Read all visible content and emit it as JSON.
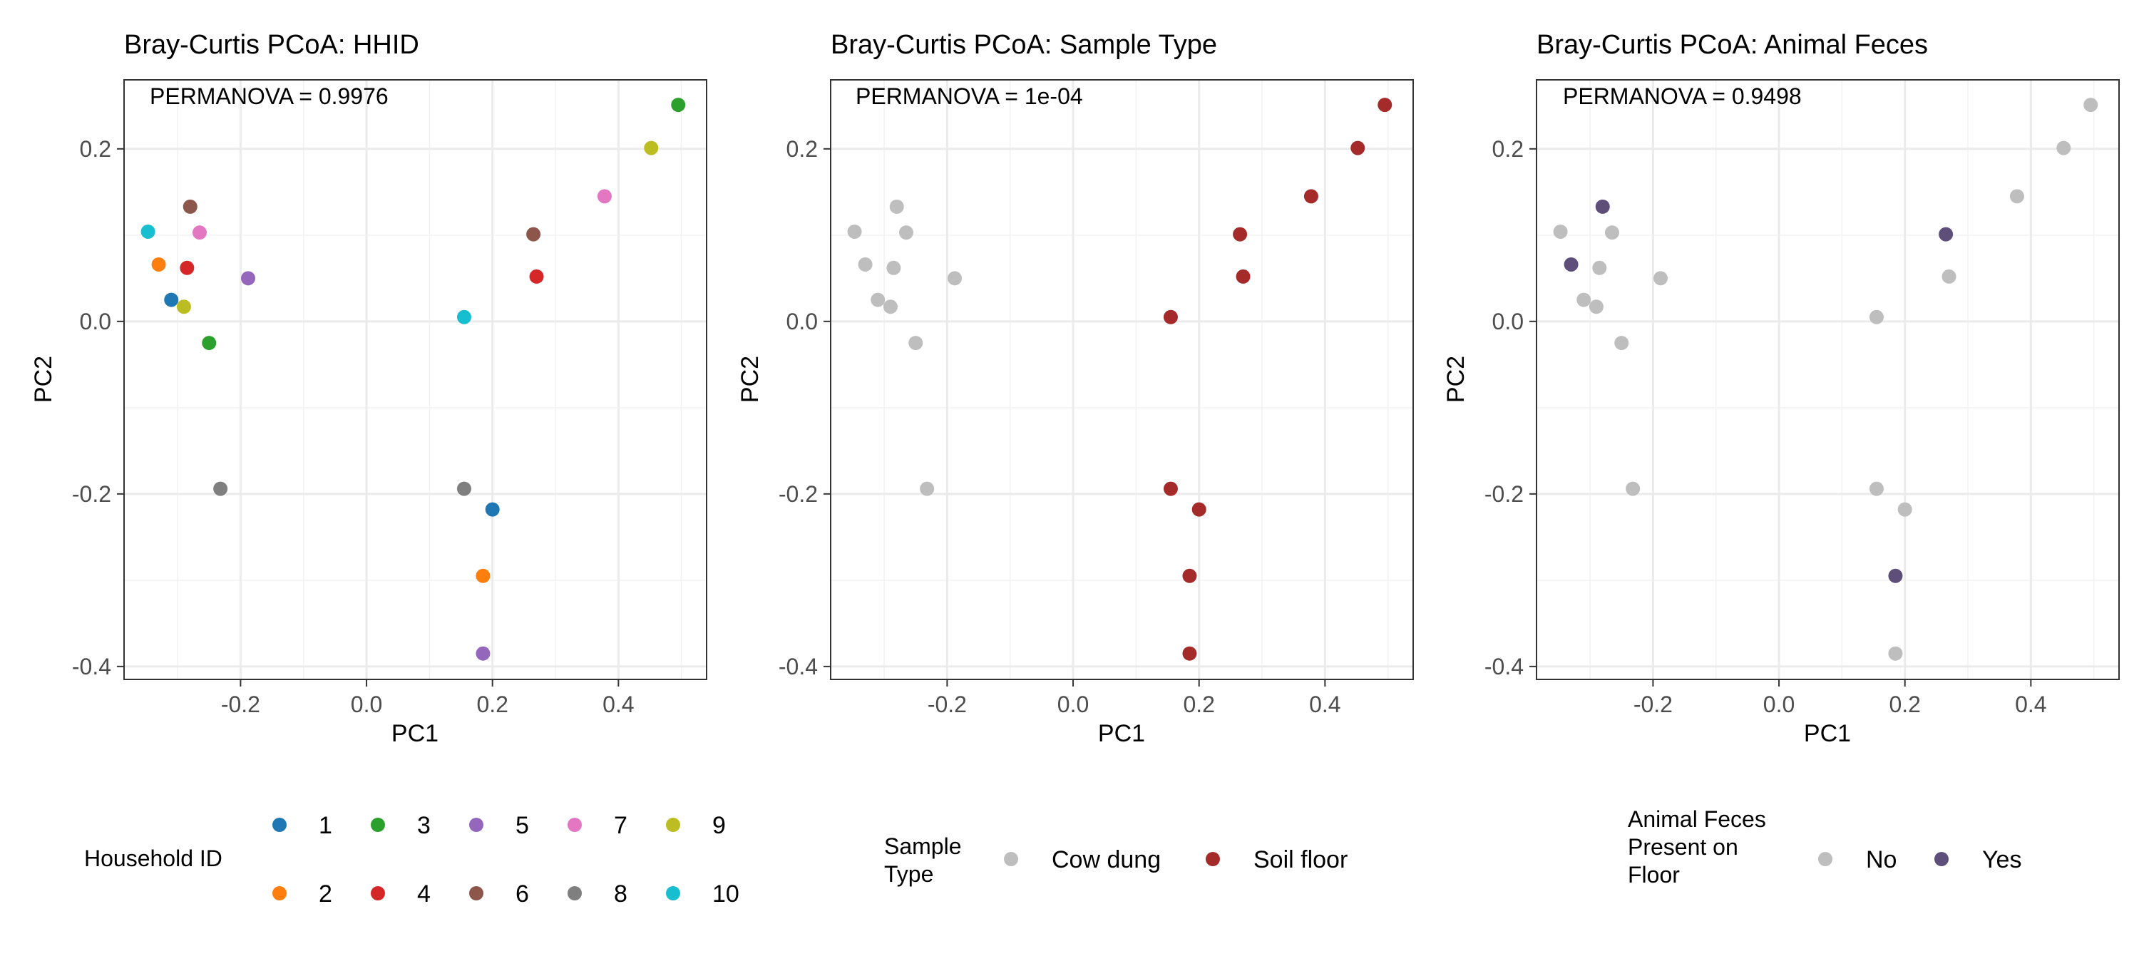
{
  "panels": [
    {
      "id": "hhid",
      "chart_data": {
        "type": "scatter",
        "title": "Bray-Curtis PCoA: HHID",
        "annotation": "PERMANOVA = 0.9976",
        "xlabel": "PC1",
        "ylabel": "PC2",
        "xlim": [
          -0.385,
          0.54
        ],
        "ylim": [
          -0.415,
          0.28
        ],
        "xticks": [
          -0.2,
          0.0,
          0.2,
          0.4
        ],
        "xtick_labels": [
          "-0.2",
          "0.0",
          "0.2",
          "0.4"
        ],
        "yticks": [
          -0.4,
          -0.2,
          0.0,
          0.2
        ],
        "ytick_labels": [
          "-0.4",
          "-0.2",
          "0.0",
          "0.2"
        ],
        "grid": true,
        "legend_position": "bottom",
        "legend_title": "Household ID",
        "legend_rows": 2,
        "series": [
          {
            "name": "1",
            "color": "#1f77b4",
            "points": [
              {
                "x": -0.31,
                "y": 0.025
              },
              {
                "x": 0.2,
                "y": -0.218
              }
            ]
          },
          {
            "name": "2",
            "color": "#ff7f0e",
            "points": [
              {
                "x": -0.33,
                "y": 0.066
              },
              {
                "x": 0.185,
                "y": -0.295
              }
            ]
          },
          {
            "name": "3",
            "color": "#2ca02c",
            "points": [
              {
                "x": -0.25,
                "y": -0.025
              },
              {
                "x": 0.495,
                "y": 0.251
              }
            ]
          },
          {
            "name": "4",
            "color": "#d62728",
            "points": [
              {
                "x": -0.285,
                "y": 0.062
              },
              {
                "x": 0.27,
                "y": 0.052
              }
            ]
          },
          {
            "name": "5",
            "color": "#9467bd",
            "points": [
              {
                "x": -0.188,
                "y": 0.05
              },
              {
                "x": 0.185,
                "y": -0.385
              }
            ]
          },
          {
            "name": "6",
            "color": "#8c564b",
            "points": [
              {
                "x": -0.28,
                "y": 0.133
              },
              {
                "x": 0.265,
                "y": 0.101
              }
            ]
          },
          {
            "name": "7",
            "color": "#e377c2",
            "points": [
              {
                "x": -0.265,
                "y": 0.103
              },
              {
                "x": 0.378,
                "y": 0.145
              }
            ]
          },
          {
            "name": "8",
            "color": "#7f7f7f",
            "points": [
              {
                "x": -0.232,
                "y": -0.194
              },
              {
                "x": 0.155,
                "y": -0.194
              }
            ]
          },
          {
            "name": "9",
            "color": "#bcbd22",
            "points": [
              {
                "x": -0.29,
                "y": 0.017
              },
              {
                "x": 0.452,
                "y": 0.201
              }
            ]
          },
          {
            "name": "10",
            "color": "#17becf",
            "points": [
              {
                "x": -0.347,
                "y": 0.104
              },
              {
                "x": 0.155,
                "y": 0.005
              }
            ]
          }
        ]
      }
    },
    {
      "id": "sample-type",
      "chart_data": {
        "type": "scatter",
        "title": "Bray-Curtis PCoA: Sample Type",
        "annotation": "PERMANOVA = 1e-04",
        "xlabel": "PC1",
        "ylabel": "PC2",
        "xlim": [
          -0.385,
          0.54
        ],
        "ylim": [
          -0.415,
          0.28
        ],
        "xticks": [
          -0.2,
          0.0,
          0.2,
          0.4
        ],
        "xtick_labels": [
          "-0.2",
          "0.0",
          "0.2",
          "0.4"
        ],
        "yticks": [
          -0.4,
          -0.2,
          0.0,
          0.2
        ],
        "ytick_labels": [
          "-0.4",
          "-0.2",
          "0.0",
          "0.2"
        ],
        "grid": true,
        "legend_position": "bottom",
        "legend_title": "Sample\nType",
        "legend_rows": 1,
        "series": [
          {
            "name": "Cow dung",
            "color": "#bebebe",
            "points": [
              {
                "x": -0.347,
                "y": 0.104
              },
              {
                "x": -0.33,
                "y": 0.066
              },
              {
                "x": -0.31,
                "y": 0.025
              },
              {
                "x": -0.29,
                "y": 0.017
              },
              {
                "x": -0.285,
                "y": 0.062
              },
              {
                "x": -0.28,
                "y": 0.133
              },
              {
                "x": -0.265,
                "y": 0.103
              },
              {
                "x": -0.25,
                "y": -0.025
              },
              {
                "x": -0.188,
                "y": 0.05
              },
              {
                "x": -0.232,
                "y": -0.194
              }
            ]
          },
          {
            "name": "Soil floor",
            "color": "#a52a2a",
            "points": [
              {
                "x": 0.495,
                "y": 0.251
              },
              {
                "x": 0.452,
                "y": 0.201
              },
              {
                "x": 0.378,
                "y": 0.145
              },
              {
                "x": 0.265,
                "y": 0.101
              },
              {
                "x": 0.27,
                "y": 0.052
              },
              {
                "x": 0.155,
                "y": 0.005
              },
              {
                "x": 0.155,
                "y": -0.194
              },
              {
                "x": 0.2,
                "y": -0.218
              },
              {
                "x": 0.185,
                "y": -0.295
              },
              {
                "x": 0.185,
                "y": -0.385
              }
            ]
          }
        ]
      }
    },
    {
      "id": "animal-feces",
      "chart_data": {
        "type": "scatter",
        "title": "Bray-Curtis PCoA: Animal Feces",
        "annotation": "PERMANOVA = 0.9498",
        "xlabel": "PC1",
        "ylabel": "PC2",
        "xlim": [
          -0.385,
          0.54
        ],
        "ylim": [
          -0.415,
          0.28
        ],
        "xticks": [
          -0.2,
          0.0,
          0.2,
          0.4
        ],
        "xtick_labels": [
          "-0.2",
          "0.0",
          "0.2",
          "0.4"
        ],
        "yticks": [
          -0.4,
          -0.2,
          0.0,
          0.2
        ],
        "ytick_labels": [
          "-0.4",
          "-0.2",
          "0.0",
          "0.2"
        ],
        "grid": true,
        "legend_position": "bottom",
        "legend_title": "Animal Feces\nPresent on\nFloor",
        "legend_rows": 1,
        "series": [
          {
            "name": "No",
            "color": "#bebebe",
            "points": [
              {
                "x": -0.347,
                "y": 0.104
              },
              {
                "x": -0.31,
                "y": 0.025
              },
              {
                "x": -0.29,
                "y": 0.017
              },
              {
                "x": -0.285,
                "y": 0.062
              },
              {
                "x": -0.265,
                "y": 0.103
              },
              {
                "x": -0.25,
                "y": -0.025
              },
              {
                "x": -0.188,
                "y": 0.05
              },
              {
                "x": -0.232,
                "y": -0.194
              },
              {
                "x": 0.495,
                "y": 0.251
              },
              {
                "x": 0.452,
                "y": 0.201
              },
              {
                "x": 0.378,
                "y": 0.145
              },
              {
                "x": 0.27,
                "y": 0.052
              },
              {
                "x": 0.155,
                "y": 0.005
              },
              {
                "x": 0.155,
                "y": -0.194
              },
              {
                "x": 0.2,
                "y": -0.218
              },
              {
                "x": 0.185,
                "y": -0.385
              }
            ]
          },
          {
            "name": "Yes",
            "color": "#5e4e7a",
            "points": [
              {
                "x": -0.33,
                "y": 0.066
              },
              {
                "x": -0.28,
                "y": 0.133
              },
              {
                "x": 0.265,
                "y": 0.101
              },
              {
                "x": 0.185,
                "y": -0.295
              }
            ]
          }
        ]
      }
    }
  ]
}
